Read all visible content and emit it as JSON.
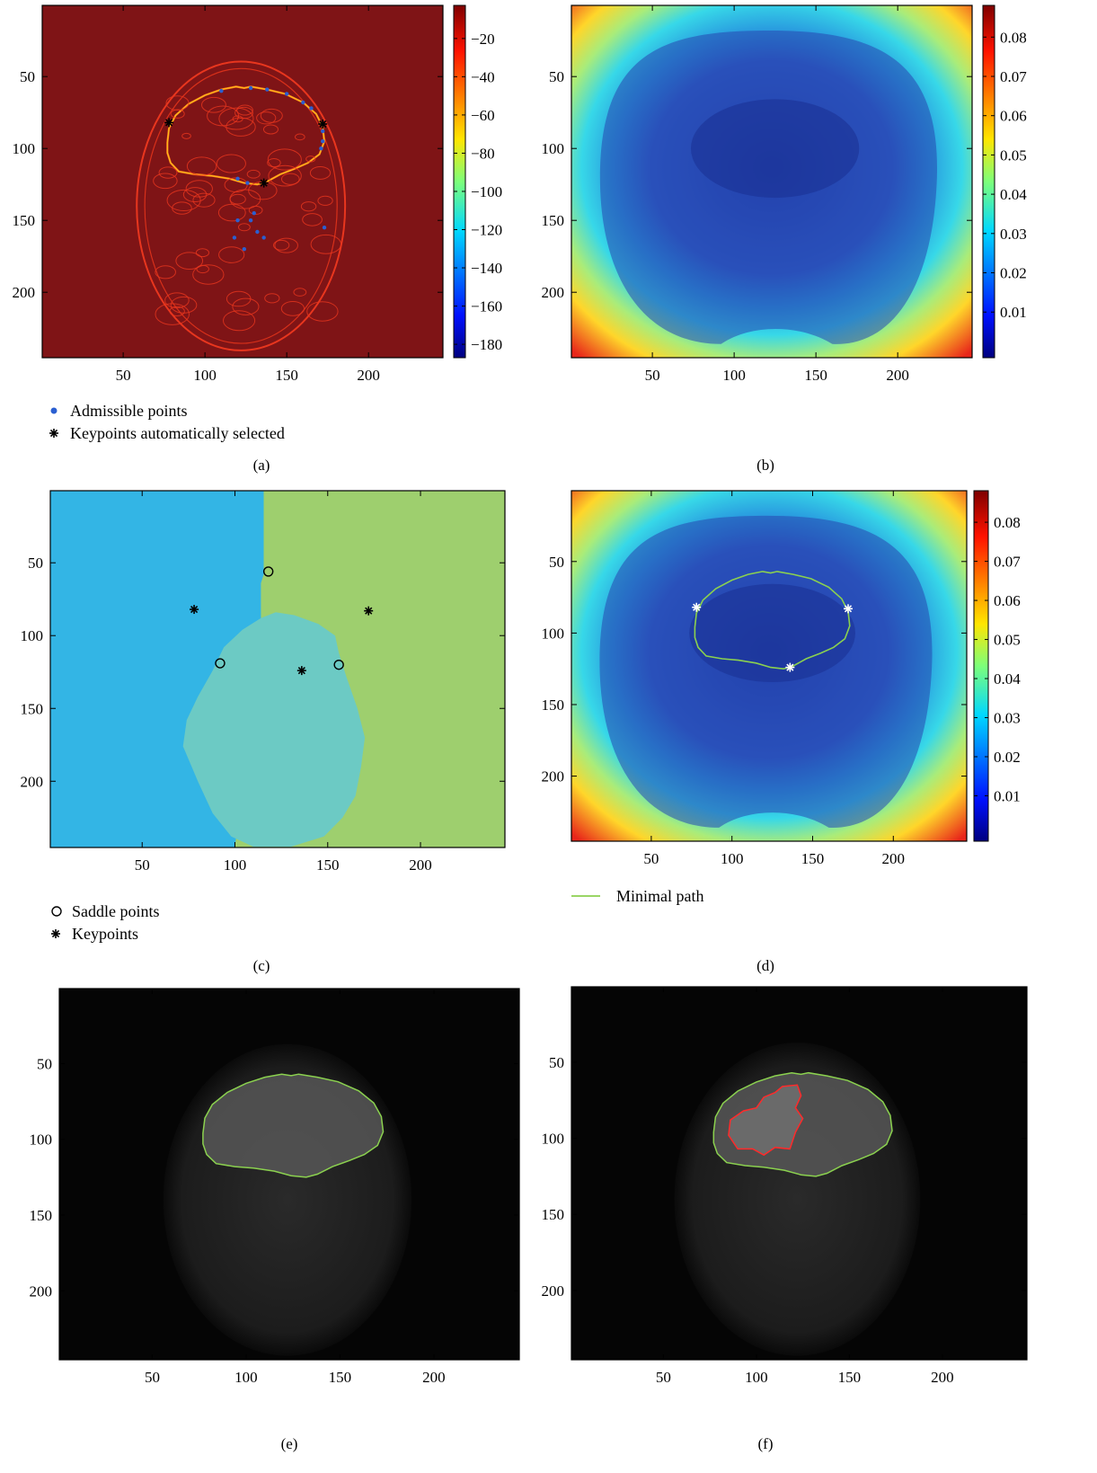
{
  "panels": [
    {
      "id": "a",
      "caption": "(a)",
      "colorbar": [
        "−20",
        "−40",
        "−60",
        "−80",
        "−100",
        "−120",
        "−140",
        "−160",
        "−180"
      ],
      "legend": [
        {
          "symbol": "dot",
          "label": "Admissible points"
        },
        {
          "symbol": "asterisk",
          "label": "Keypoints automatically selected"
        }
      ]
    },
    {
      "id": "b",
      "caption": "(b)",
      "colorbar": [
        "0.08",
        "0.07",
        "0.06",
        "0.05",
        "0.04",
        "0.03",
        "0.02",
        "0.01"
      ],
      "legend": []
    },
    {
      "id": "c",
      "caption": "(c)",
      "colorbar": [],
      "legend": [
        {
          "symbol": "circle",
          "label": "Saddle points"
        },
        {
          "symbol": "asterisk",
          "label": "Keypoints"
        }
      ]
    },
    {
      "id": "d",
      "caption": "(d)",
      "colorbar": [
        "0.08",
        "0.07",
        "0.06",
        "0.05",
        "0.04",
        "0.03",
        "0.02",
        "0.01"
      ],
      "legend": [
        {
          "symbol": "line",
          "label": "Minimal path"
        }
      ]
    },
    {
      "id": "e",
      "caption": "(e)",
      "colorbar": [],
      "legend": []
    },
    {
      "id": "f",
      "caption": "(f)",
      "colorbar": [],
      "legend": []
    }
  ],
  "axis_ticks": {
    "x": [
      "50",
      "100",
      "150",
      "200"
    ],
    "y": [
      "50",
      "100",
      "150",
      "200"
    ]
  },
  "keypoints": [
    [
      78,
      82
    ],
    [
      172,
      83
    ],
    [
      136,
      124
    ]
  ],
  "saddle_points": [
    [
      118,
      56
    ],
    [
      92,
      119
    ],
    [
      156,
      120
    ]
  ],
  "colors": {
    "jet_dark_red": "#7f1416",
    "region_blue": "#33b5e5",
    "region_green": "#9ecf6e",
    "region_teal": "#6ccac4",
    "path_green": "#8bd14f",
    "tumor_red": "#ff2a2a"
  }
}
